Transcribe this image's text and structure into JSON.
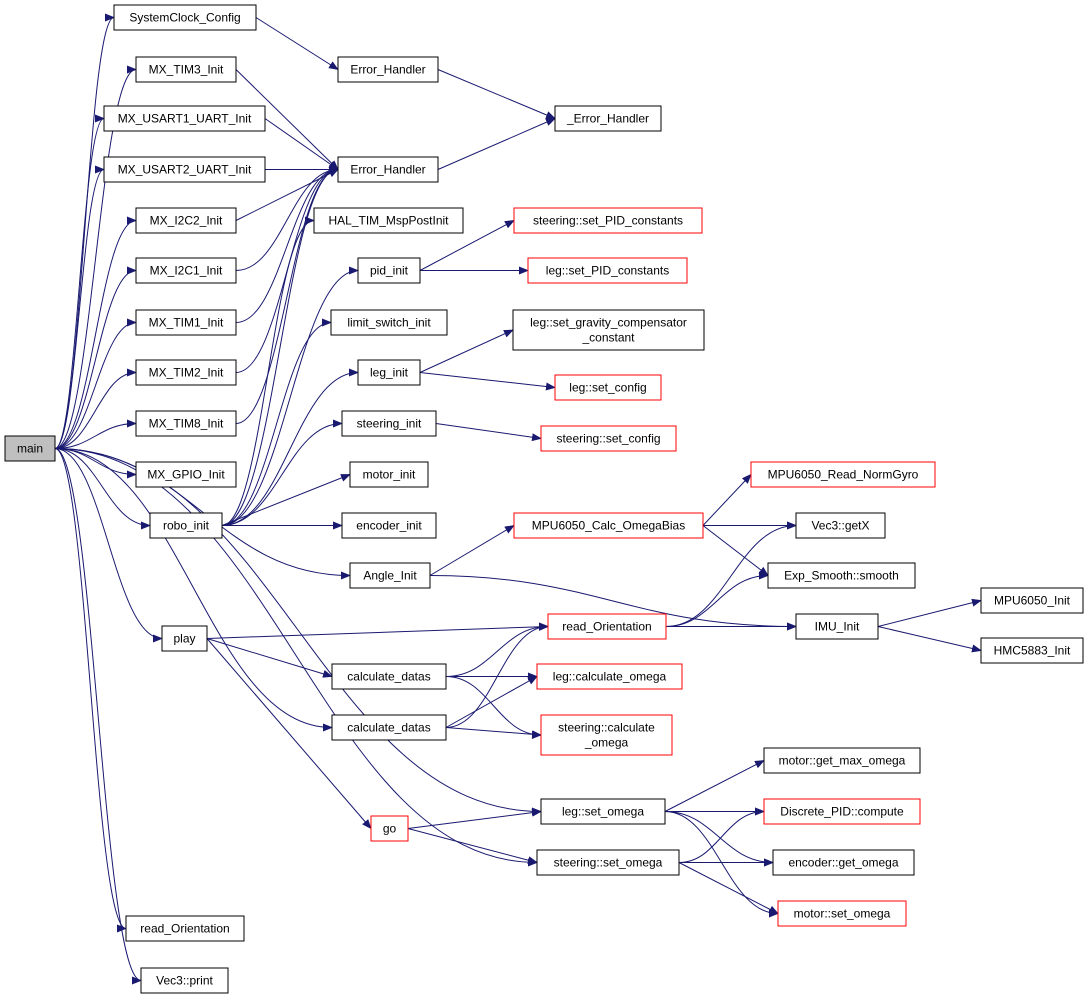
{
  "colors": {
    "edge": "#191970",
    "border_normal": "#000000",
    "border_link": "#ff0000",
    "root_fill": "#bfbfbf",
    "node_fill": "#ffffff"
  },
  "nodes": [
    {
      "id": "main",
      "lines": [
        "main"
      ],
      "kind": "root"
    },
    {
      "id": "systemclock_config",
      "lines": [
        "SystemClock_Config"
      ],
      "kind": "normal"
    },
    {
      "id": "mx_tim3_init",
      "lines": [
        "MX_TIM3_Init"
      ],
      "kind": "normal"
    },
    {
      "id": "mx_usart1_uart_init",
      "lines": [
        "MX_USART1_UART_Init"
      ],
      "kind": "normal"
    },
    {
      "id": "mx_usart2_uart_init",
      "lines": [
        "MX_USART2_UART_Init"
      ],
      "kind": "normal"
    },
    {
      "id": "mx_i2c2_init",
      "lines": [
        "MX_I2C2_Init"
      ],
      "kind": "normal"
    },
    {
      "id": "mx_i2c1_init",
      "lines": [
        "MX_I2C1_Init"
      ],
      "kind": "normal"
    },
    {
      "id": "mx_tim1_init",
      "lines": [
        "MX_TIM1_Init"
      ],
      "kind": "normal"
    },
    {
      "id": "mx_tim2_init",
      "lines": [
        "MX_TIM2_Init"
      ],
      "kind": "normal"
    },
    {
      "id": "mx_tim8_init",
      "lines": [
        "MX_TIM8_Init"
      ],
      "kind": "normal"
    },
    {
      "id": "mx_gpio_init",
      "lines": [
        "MX_GPIO_Init"
      ],
      "kind": "normal"
    },
    {
      "id": "robo_init",
      "lines": [
        "robo_init"
      ],
      "kind": "normal"
    },
    {
      "id": "angle_init",
      "lines": [
        "Angle_Init"
      ],
      "kind": "normal"
    },
    {
      "id": "play",
      "lines": [
        "play"
      ],
      "kind": "normal"
    },
    {
      "id": "read_orientation_main",
      "lines": [
        "read_Orientation"
      ],
      "kind": "normal"
    },
    {
      "id": "vec3_print",
      "lines": [
        "Vec3::print"
      ],
      "kind": "normal"
    },
    {
      "id": "error_handler_top",
      "lines": [
        "Error_Handler"
      ],
      "kind": "normal"
    },
    {
      "id": "underscore_error_handler",
      "lines": [
        "_Error_Handler"
      ],
      "kind": "normal"
    },
    {
      "id": "error_handler_mid",
      "lines": [
        "Error_Handler"
      ],
      "kind": "normal"
    },
    {
      "id": "hal_tim_msppostinit",
      "lines": [
        "HAL_TIM_MspPostInit"
      ],
      "kind": "normal"
    },
    {
      "id": "pid_init",
      "lines": [
        "pid_init"
      ],
      "kind": "normal"
    },
    {
      "id": "limit_switch_init",
      "lines": [
        "limit_switch_init"
      ],
      "kind": "normal"
    },
    {
      "id": "leg_init",
      "lines": [
        "leg_init"
      ],
      "kind": "normal"
    },
    {
      "id": "steering_init",
      "lines": [
        "steering_init"
      ],
      "kind": "normal"
    },
    {
      "id": "motor_init",
      "lines": [
        "motor_init"
      ],
      "kind": "normal"
    },
    {
      "id": "encoder_init",
      "lines": [
        "encoder_init"
      ],
      "kind": "normal"
    },
    {
      "id": "steering_set_pid_constants",
      "lines": [
        "steering::set_PID_constants"
      ],
      "kind": "link"
    },
    {
      "id": "leg_set_pid_constants",
      "lines": [
        "leg::set_PID_constants"
      ],
      "kind": "link"
    },
    {
      "id": "leg_set_gravity_comp",
      "lines": [
        "leg::set_gravity_compensator",
        "_constant"
      ],
      "kind": "normal"
    },
    {
      "id": "leg_set_config",
      "lines": [
        "leg::set_config"
      ],
      "kind": "link"
    },
    {
      "id": "steering_set_config",
      "lines": [
        "steering::set_config"
      ],
      "kind": "link"
    },
    {
      "id": "mpu6050_read_normgyro",
      "lines": [
        "MPU6050_Read_NormGyro"
      ],
      "kind": "link"
    },
    {
      "id": "mpu6050_calc_omegabias",
      "lines": [
        "MPU6050_Calc_OmegaBias"
      ],
      "kind": "link"
    },
    {
      "id": "vec3_getx",
      "lines": [
        "Vec3::getX"
      ],
      "kind": "normal"
    },
    {
      "id": "exp_smooth_smooth",
      "lines": [
        "Exp_Smooth::smooth"
      ],
      "kind": "normal"
    },
    {
      "id": "read_orientation_mid",
      "lines": [
        "read_Orientation"
      ],
      "kind": "link"
    },
    {
      "id": "imu_init",
      "lines": [
        "IMU_Init"
      ],
      "kind": "normal"
    },
    {
      "id": "mpu6050_init",
      "lines": [
        "MPU6050_Init"
      ],
      "kind": "normal"
    },
    {
      "id": "hmc5883_init",
      "lines": [
        "HMC5883_Init"
      ],
      "kind": "normal"
    },
    {
      "id": "calculate_datas_1",
      "lines": [
        "calculate_datas"
      ],
      "kind": "normal"
    },
    {
      "id": "calculate_datas_2",
      "lines": [
        "calculate_datas"
      ],
      "kind": "normal"
    },
    {
      "id": "leg_calculate_omega",
      "lines": [
        "leg::calculate_omega"
      ],
      "kind": "link"
    },
    {
      "id": "steering_calculate_omega",
      "lines": [
        "steering::calculate",
        "_omega"
      ],
      "kind": "link"
    },
    {
      "id": "go",
      "lines": [
        "go"
      ],
      "kind": "link"
    },
    {
      "id": "leg_set_omega",
      "lines": [
        "leg::set_omega"
      ],
      "kind": "normal"
    },
    {
      "id": "steering_set_omega",
      "lines": [
        "steering::set_omega"
      ],
      "kind": "normal"
    },
    {
      "id": "motor_get_max_omega",
      "lines": [
        "motor::get_max_omega"
      ],
      "kind": "normal"
    },
    {
      "id": "discrete_pid_compute",
      "lines": [
        "Discrete_PID::compute"
      ],
      "kind": "link"
    },
    {
      "id": "encoder_get_omega",
      "lines": [
        "encoder::get_omega"
      ],
      "kind": "normal"
    },
    {
      "id": "motor_set_omega",
      "lines": [
        "motor::set_omega"
      ],
      "kind": "link"
    }
  ]
}
